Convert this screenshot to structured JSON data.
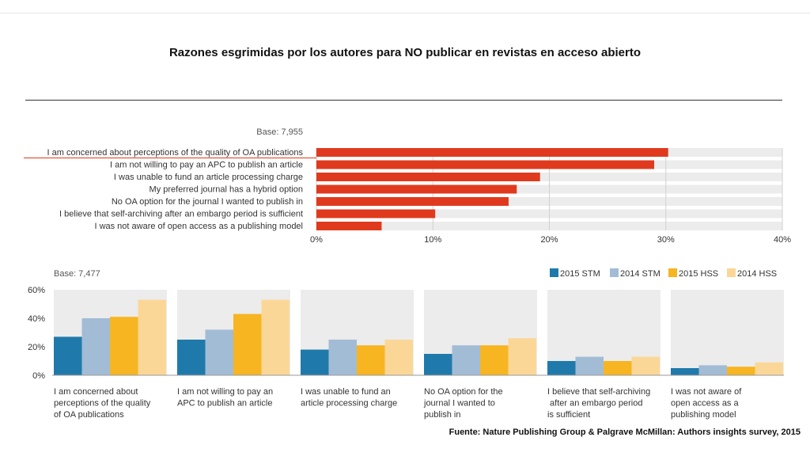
{
  "title": "Razones esgrimidas por los autores para NO publicar en revistas en acceso abierto",
  "source": "Fuente: Nature Publishing Group & Palgrave McMillan: Authors insights survey, 2015",
  "colors": {
    "bar_red": "#e03a1e",
    "track": "#ececec",
    "stm2015": "#1f7aab",
    "stm2014": "#a2bcd6",
    "hss2015": "#f7b522",
    "hss2014": "#fbd797",
    "grid": "#d0d0d0"
  },
  "chart_data": [
    {
      "type": "bar",
      "orientation": "horizontal",
      "base_label": "Base: 7,955",
      "categories": [
        "I am concerned about perceptions of the quality of OA publications",
        "I am not willing to pay an APC to publish an article",
        "I was unable to fund an article processing charge",
        "My preferred journal has a hybrid option",
        "No OA option for the journal I wanted to publish in",
        "I believe that self-archiving after an embargo period is sufficient",
        "I was not aware of open access as a publishing model"
      ],
      "values": [
        30.2,
        29.0,
        19.2,
        17.2,
        16.5,
        10.2,
        5.6
      ],
      "xlim": [
        0,
        40
      ],
      "xticks": [
        "0%",
        "10%",
        "20%",
        "30%",
        "40%"
      ],
      "grid": true
    },
    {
      "type": "bar",
      "orientation": "vertical",
      "base_label": "Base: 7,477",
      "categories": [
        "I am concerned about perceptions of the quality of OA publications",
        "I am not willing to pay an APC to publish an article",
        "I was unable to fund an article processing charge",
        "No OA option for the journal I wanted to publish in",
        "I believe that self-archiving after an embargo period is sufficient",
        "I was not aware of open access as a publishing model"
      ],
      "category_lines": [
        [
          "I am concerned about",
          "perceptions of the quality",
          "of OA publications"
        ],
        [
          "I am not willing to pay an",
          "APC to publish an article"
        ],
        [
          "I was unable to fund an",
          "article processing charge"
        ],
        [
          "No OA option for the",
          "journal I wanted to",
          "publish in"
        ],
        [
          "I believe that self-archiving",
          " after an embargo period",
          "is sufficient"
        ],
        [
          "I was not aware of",
          "open access as a",
          "publishing model"
        ]
      ],
      "series": [
        {
          "name": "2015 STM",
          "values": [
            27,
            25,
            18,
            15,
            10,
            5
          ]
        },
        {
          "name": "2014 STM",
          "values": [
            40,
            32,
            25,
            21,
            13,
            7
          ]
        },
        {
          "name": "2015 HSS",
          "values": [
            41,
            43,
            21,
            21,
            10,
            6
          ]
        },
        {
          "name": "2014 HSS",
          "values": [
            53,
            53,
            25,
            26,
            13,
            9
          ]
        }
      ],
      "ylim": [
        0,
        60
      ],
      "yticks": [
        "0%",
        "20%",
        "40%",
        "60%"
      ],
      "legend": "top-right",
      "grid": false
    }
  ]
}
